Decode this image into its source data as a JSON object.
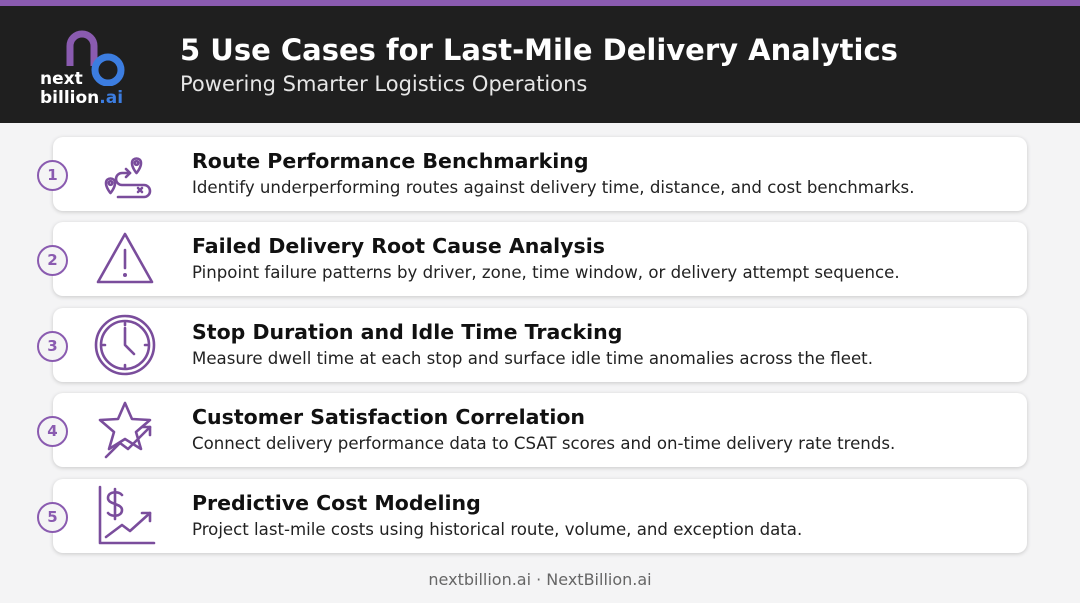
{
  "header": {
    "logo": {
      "line1": "next",
      "line2": "billion",
      "suffix": ".ai"
    },
    "title": "5 Use Cases for Last-Mile Delivery Analytics",
    "subtitle": "Powering Smarter Logistics Operations"
  },
  "items": [
    {
      "number": 1,
      "title": "Route Performance Benchmarking",
      "description": "Identify underperforming routes against delivery time, distance, and cost benchmarks."
    },
    {
      "number": 2,
      "title": "Failed Delivery Root Cause Analysis",
      "description": "Pinpoint failure patterns by driver, zone, time window, or delivery attempt sequence."
    },
    {
      "number": 3,
      "title": "Stop Duration and Idle Time Tracking",
      "description": "Measure dwell time at each stop and surface idle time anomalies across the fleet."
    },
    {
      "number": 4,
      "title": "Customer Satisfaction Correlation",
      "description": "Connect delivery performance data to CSAT scores and on-time delivery rate trends."
    },
    {
      "number": 5,
      "title": "Predictive Cost Modeling",
      "description": "Project last-mile costs using historical route, volume, and exception data."
    }
  ],
  "footer": "nextbillion.ai · NextBillion.ai"
}
